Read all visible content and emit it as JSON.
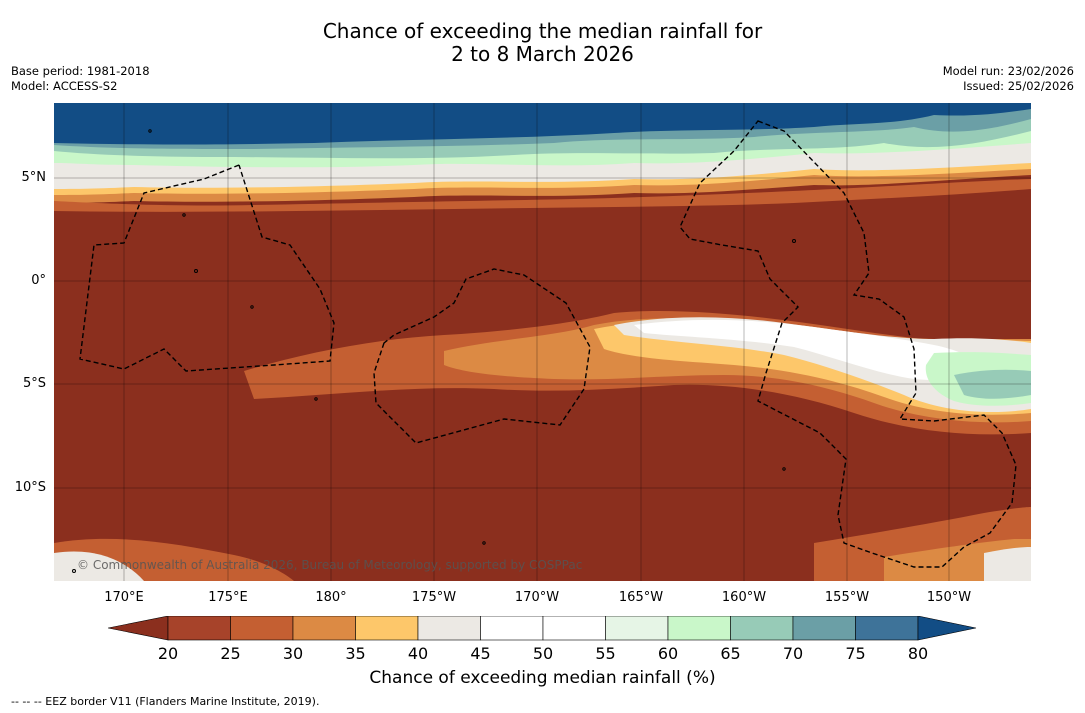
{
  "title_line1": "Chance of exceeding the median rainfall for",
  "title_line2": "2 to 8 March 2026",
  "meta_left": {
    "base_period": "Base period: 1981-2018",
    "model": "Model: ACCESS-S2"
  },
  "meta_right": {
    "model_run": "Model run: 23/02/2026",
    "issued": "Issued: 25/02/2026"
  },
  "copyright": "© Commonwealth of Australia 2026, Bureau of Meteorology, supported by COSPPac",
  "lat_labels": [
    "5°N",
    "0°",
    "5°S",
    "10°S"
  ],
  "lon_labels": [
    "170°E",
    "175°E",
    "180°",
    "175°W",
    "170°W",
    "165°W",
    "160°W",
    "155°W",
    "150°W"
  ],
  "colorbar": {
    "ticks": [
      "20",
      "25",
      "30",
      "35",
      "40",
      "45",
      "50",
      "55",
      "60",
      "65",
      "70",
      "75",
      "80"
    ],
    "label": "Chance of exceeding median rainfall (%)",
    "colors": {
      "below20": "#8b2f1e",
      "b20_25": "#a7432a",
      "b25_30": "#c45f32",
      "b30_35": "#dc8a44",
      "b35_40": "#fdc76a",
      "b40_45": "#ece9e4",
      "b45_50": "#ffffff",
      "b50_55": "#ffffff",
      "b55_60": "#e6f5e6",
      "b60_65": "#c9f7c9",
      "b65_70": "#97cbb7",
      "b70_75": "#6b9fa6",
      "b75_80": "#3e7399",
      "above80": "#124d85"
    }
  },
  "footnote": "--  --  -- EEZ border V11 (Flanders Marine Institute, 2019)."
}
